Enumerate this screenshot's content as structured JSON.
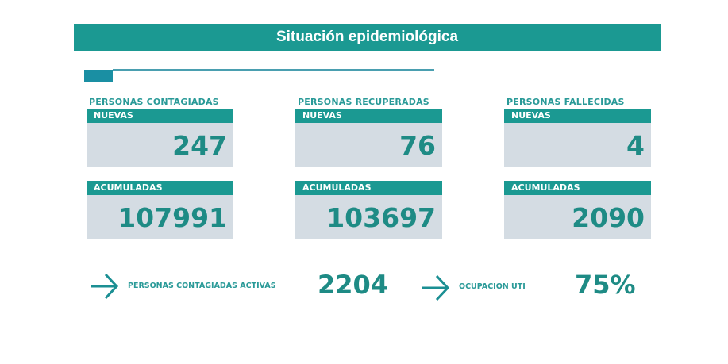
{
  "title": "Situación epidemiológica",
  "cards": [
    {
      "label": "PERSONAS CONTAGIADAS",
      "nuevas_label": "NUEVAS",
      "nuevas": "247",
      "acum_label": "ACUMULADAS",
      "acumuladas": "107991"
    },
    {
      "label": "PERSONAS RECUPERADAS",
      "nuevas_label": "NUEVAS",
      "nuevas": "76",
      "acum_label": "ACUMULADAS",
      "acumuladas": "103697"
    },
    {
      "label": "PERSONAS FALLECIDAS",
      "nuevas_label": "NUEVAS",
      "nuevas": "4",
      "acum_label": "ACUMULADAS",
      "acumuladas": "2090"
    }
  ],
  "summary": {
    "activas_label": "PERSONAS CONTAGIADAS ACTIVAS",
    "activas": "2204",
    "uti_label": "OCUPACION UTI",
    "uti": "75%"
  },
  "colors": {
    "teal": "#1b9992",
    "box": "#d4dce3"
  }
}
